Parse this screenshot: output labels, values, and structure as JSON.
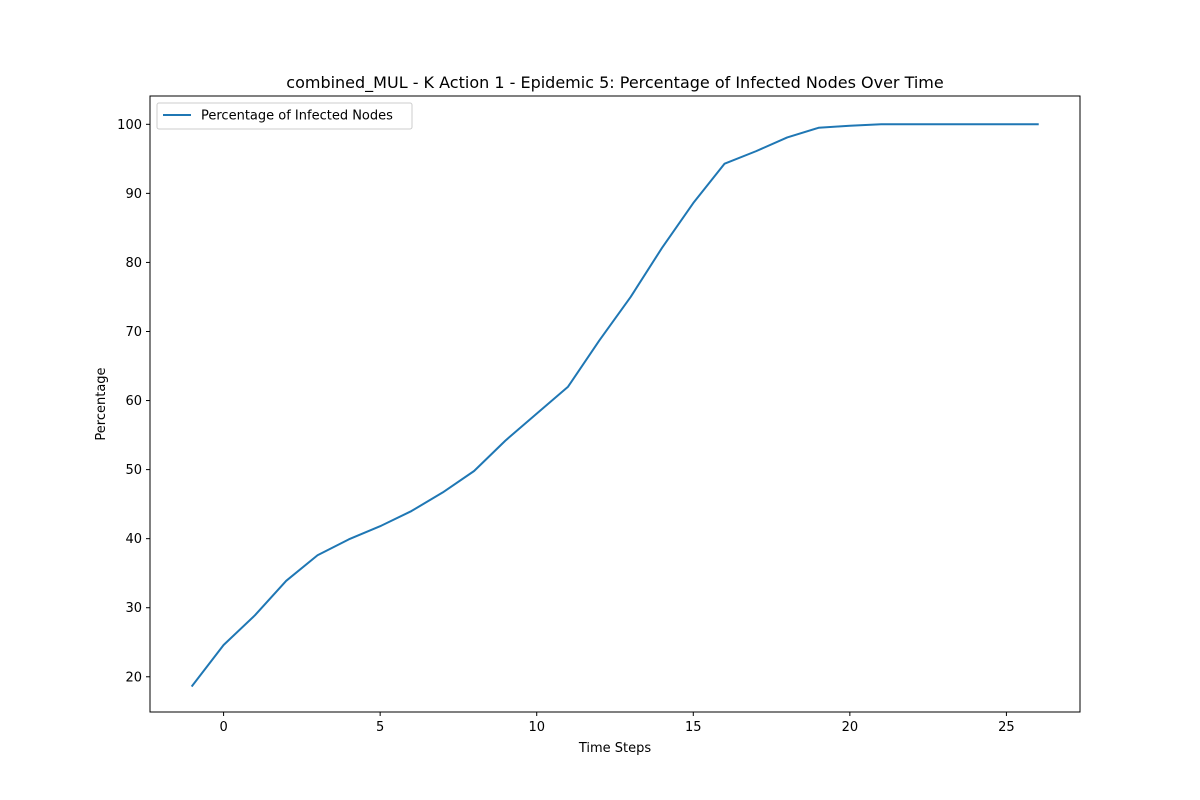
{
  "chart_data": {
    "type": "line",
    "title": "combined_MUL - K Action 1 - Epidemic 5: Percentage of Infected Nodes Over Time",
    "xlabel": "Time Steps",
    "ylabel": "Percentage",
    "xlim": [
      -2.35,
      27.35
    ],
    "ylim": [
      14.9,
      104.1
    ],
    "xticks": [
      0,
      5,
      10,
      15,
      20,
      25
    ],
    "yticks": [
      20,
      30,
      40,
      50,
      60,
      70,
      80,
      90,
      100
    ],
    "grid": false,
    "legend_position": "upper-left",
    "series": [
      {
        "name": "Percentage of Infected Nodes",
        "color": "#1f77b4",
        "x": [
          -1,
          0,
          1,
          2,
          3,
          4,
          5,
          6,
          7,
          8,
          9,
          10,
          11,
          12,
          13,
          14,
          15,
          16,
          17,
          18,
          19,
          20,
          21,
          22,
          23,
          24,
          25,
          26
        ],
        "y": [
          18.7,
          24.6,
          28.9,
          33.9,
          37.6,
          39.9,
          41.8,
          44.0,
          46.7,
          49.8,
          54.2,
          58.1,
          62.0,
          68.7,
          75.0,
          82.1,
          88.6,
          94.3,
          96.1,
          98.1,
          99.5,
          99.8,
          100.0,
          100.0,
          100.0,
          100.0,
          100.0,
          100.0
        ]
      }
    ]
  }
}
